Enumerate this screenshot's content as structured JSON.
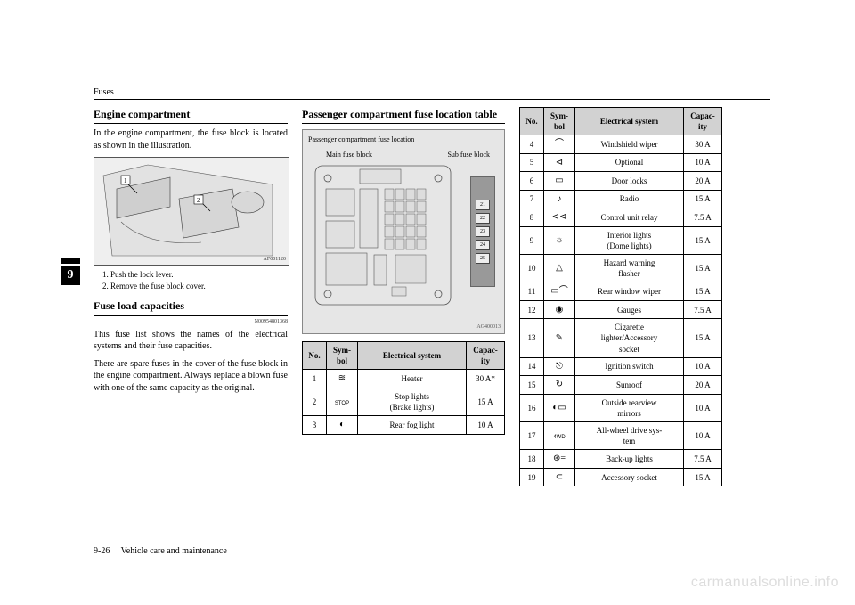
{
  "header": "Fuses",
  "chapter_tab": "9",
  "footer": {
    "page": "9-26",
    "section": "Vehicle care and maintenance"
  },
  "watermark": "carmanualsonline.info",
  "col1": {
    "heading1": "Engine compartment",
    "para1": "In the engine compartment, the fuse block is located as shown in the illustration.",
    "illus_code": "AF001120",
    "caption1": "1. Push the lock lever.",
    "caption2": "2. Remove the fuse block cover.",
    "heading2": "Fuse load capacities",
    "code2": "N00954801368",
    "para2": "This fuse list shows the names of the electrical systems and their fuse capacities.",
    "para3": "There are spare fuses in the cover of the fuse block in the engine compartment. Always replace a blown fuse with one of the same capacity as the original."
  },
  "col2": {
    "heading": "Passenger compartment fuse location table",
    "box_title": "Passenger compartment fuse location",
    "label_main": "Main fuse block",
    "label_sub": "Sub fuse block",
    "sub_fuses": [
      "21",
      "22",
      "23",
      "24",
      "25"
    ],
    "illus_code": "AG400013",
    "table": {
      "headers": [
        "No.",
        "Symbol",
        "Electrical system",
        "Capacity"
      ],
      "header_short": {
        "symbol": "Sym-\nbol",
        "capacity": "Capac-\nity"
      },
      "rows": [
        {
          "no": "1",
          "sym": "heater",
          "sys": "Heater",
          "cap": "30 A*"
        },
        {
          "no": "2",
          "sym": "stop",
          "sys": "Stop lights\n(Brake lights)",
          "cap": "15 A"
        },
        {
          "no": "3",
          "sym": "rearfog",
          "sys": "Rear fog light",
          "cap": "10 A"
        }
      ]
    }
  },
  "col3": {
    "table": {
      "headers": [
        "No.",
        "Symbol",
        "Electrical system",
        "Capacity"
      ],
      "header_short": {
        "symbol": "Sym-\nbol",
        "capacity": "Capac-\nity"
      },
      "rows": [
        {
          "no": "4",
          "sym": "wiper",
          "sys": "Windshield wiper",
          "cap": "30 A"
        },
        {
          "no": "5",
          "sym": "optional",
          "sys": "Optional",
          "cap": "10 A"
        },
        {
          "no": "6",
          "sym": "doorlock",
          "sys": "Door locks",
          "cap": "20 A"
        },
        {
          "no": "7",
          "sym": "radio",
          "sys": "Radio",
          "cap": "15 A"
        },
        {
          "no": "8",
          "sym": "relay",
          "sys": "Control unit relay",
          "cap": "7.5 A"
        },
        {
          "no": "9",
          "sym": "dome",
          "sys": "Interior lights\n(Dome lights)",
          "cap": "15 A"
        },
        {
          "no": "10",
          "sym": "hazard",
          "sys": "Hazard warning\nflasher",
          "cap": "15 A"
        },
        {
          "no": "11",
          "sym": "rearwiper",
          "sys": "Rear window wiper",
          "cap": "15 A"
        },
        {
          "no": "12",
          "sym": "gauges",
          "sys": "Gauges",
          "cap": "7.5 A"
        },
        {
          "no": "13",
          "sym": "cigarette",
          "sys": "Cigarette\nlighter/Accessory\nsocket",
          "cap": "15 A"
        },
        {
          "no": "14",
          "sym": "ignition",
          "sys": "Ignition switch",
          "cap": "10 A"
        },
        {
          "no": "15",
          "sym": "sunroof",
          "sys": "Sunroof",
          "cap": "20 A"
        },
        {
          "no": "16",
          "sym": "mirror",
          "sys": "Outside rearview\nmirrors",
          "cap": "10 A"
        },
        {
          "no": "17",
          "sym": "awd",
          "sys": "All-wheel drive sys-\ntem",
          "cap": "10 A"
        },
        {
          "no": "18",
          "sym": "backup",
          "sys": "Back-up lights",
          "cap": "7.5 A"
        },
        {
          "no": "19",
          "sym": "accessory",
          "sys": "Accessory socket",
          "cap": "15 A"
        }
      ]
    }
  },
  "symbols": {
    "heater": "≋",
    "stop": "STOP",
    "rearfog": "◐",
    "wiper": "⌒",
    "optional": "⊲",
    "doorlock": "▭",
    "radio": "♪",
    "relay": "⊲⊲",
    "dome": "☼",
    "hazard": "△",
    "rearwiper": "▭⌒",
    "gauges": "◉",
    "cigarette": "✎",
    "ignition": "⎋",
    "sunroof": "↻",
    "mirror": "◐▭",
    "awd": "4x4",
    "backup": "⊛=",
    "accessory": "⊂"
  },
  "styles": {
    "header_bg": "#d2d2d2",
    "border_color": "#000000",
    "box_bg": "#e6e6e6"
  }
}
